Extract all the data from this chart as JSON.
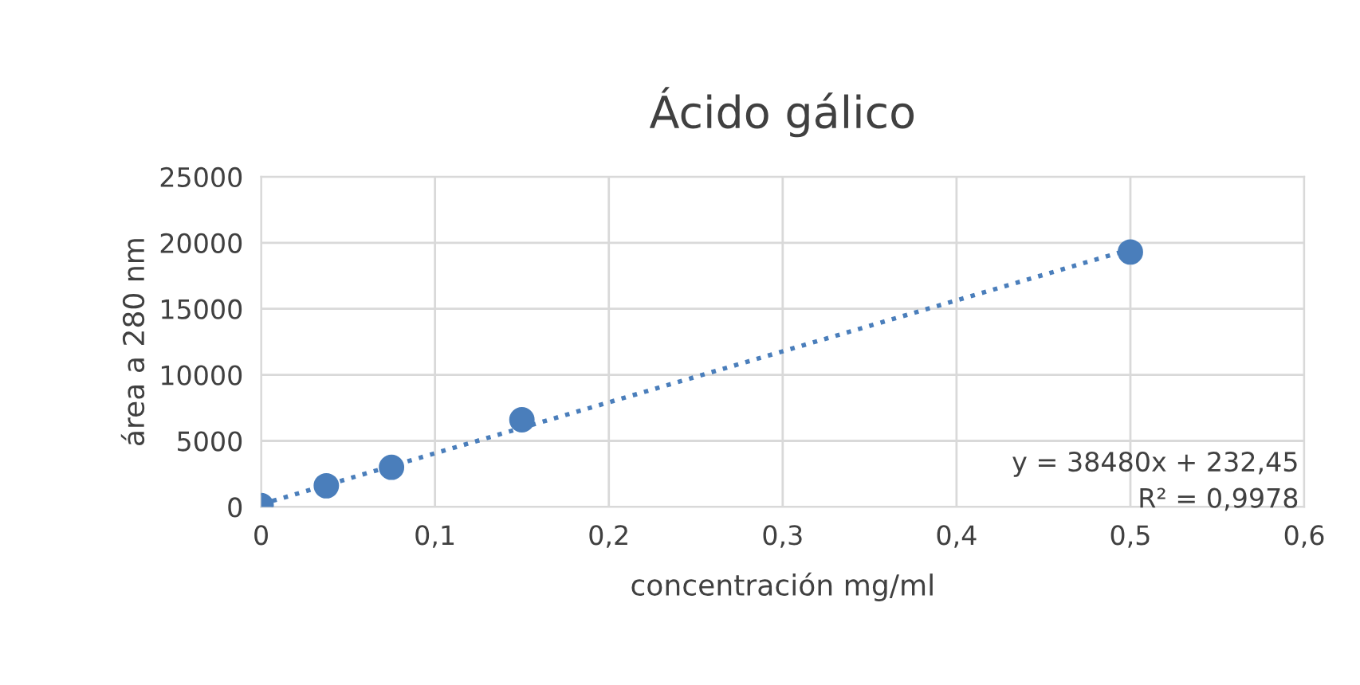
{
  "chart_data": {
    "type": "scatter",
    "title": "Ácido gálico",
    "xlabel": "concentración mg/ml",
    "ylabel": "área a 280 nm",
    "series": [
      {
        "color": "#4a7ebb",
        "marker": "circle",
        "x": [
          0,
          0.0375,
          0.075,
          0.15,
          0.5
        ],
        "values": [
          100,
          1600,
          3000,
          6600,
          19300
        ]
      },
      {
        "type": "line",
        "color": "#4a7ebb",
        "line_style": "dotted",
        "x": [
          0,
          0.5
        ],
        "values": [
          200,
          19500
        ]
      }
    ],
    "xlim": [
      0,
      0.6
    ],
    "xticks": [
      {
        "value": 0,
        "label": "0"
      },
      {
        "value": 0.1,
        "label": "0,1"
      },
      {
        "value": 0.2,
        "label": "0,2"
      },
      {
        "value": 0.3,
        "label": "0,3"
      },
      {
        "value": 0.4,
        "label": "0,4"
      },
      {
        "value": 0.5,
        "label": "0,5"
      },
      {
        "value": 0.6,
        "label": "0,6"
      }
    ],
    "ylim": [
      0,
      25000
    ],
    "yticks": [
      0,
      5000,
      10000,
      15000,
      20000,
      25000
    ],
    "grid": true,
    "annotations": [
      "y = 38480x + 232,45",
      "R² = 0,9978"
    ]
  }
}
